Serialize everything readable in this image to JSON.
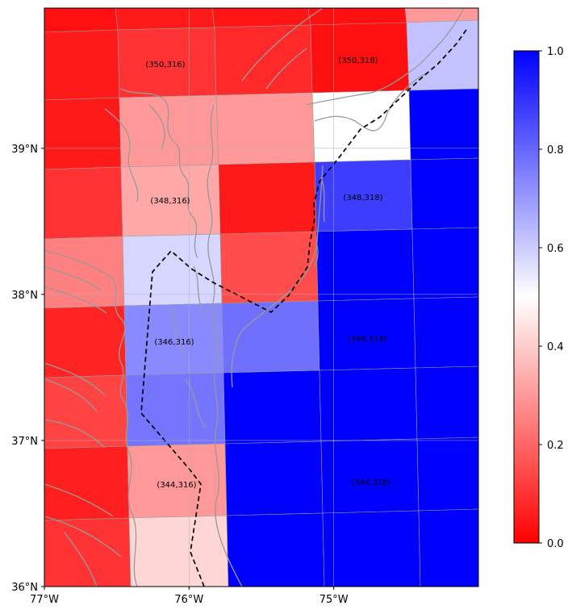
{
  "map": {
    "lat_range": [
      36,
      39.96
    ],
    "lon_range": [
      -77,
      -74
    ],
    "lat_ticks": [
      {
        "value": 39,
        "label": "39°N"
      },
      {
        "value": 38,
        "label": "38°N"
      },
      {
        "value": 37,
        "label": "37°N"
      },
      {
        "value": 36,
        "label": "36°N"
      }
    ],
    "lon_ticks": [
      {
        "value": -77,
        "label": "77°W"
      },
      {
        "value": -76,
        "label": "76°W"
      },
      {
        "value": -75,
        "label": "75°W"
      }
    ],
    "grid_note": "irregular tiles, colored by value",
    "rows": [
      {
        "values": [
          0.03,
          0.05,
          0.04,
          0.03,
          0.3
        ]
      },
      {
        "values": [
          0.05,
          0.1,
          0.08,
          0.03,
          0.62
        ]
      },
      {
        "values": [
          0.05,
          0.3,
          0.3,
          0.5,
          1.0
        ]
      },
      {
        "values": [
          0.1,
          0.33,
          0.05,
          0.88,
          1.0
        ]
      },
      {
        "values": [
          0.25,
          0.58,
          0.15,
          1.0,
          1.0
        ]
      },
      {
        "values": [
          0.07,
          0.73,
          0.78,
          1.0,
          1.0
        ]
      },
      {
        "values": [
          0.13,
          0.77,
          1.0,
          1.0,
          1.0
        ]
      },
      {
        "values": [
          0.06,
          0.3,
          1.0,
          1.0,
          1.0
        ]
      },
      {
        "values": [
          0.1,
          0.42,
          1.0,
          1.0,
          1.0
        ]
      }
    ],
    "cell_labels": [
      {
        "text": "(350,316)"
      },
      {
        "text": "(350,318)"
      },
      {
        "text": "(348,316)"
      },
      {
        "text": "(348,318)"
      },
      {
        "text": "(346,316)"
      },
      {
        "text": "(346,318)"
      },
      {
        "text": "(344,316)"
      },
      {
        "text": "(344,318)"
      }
    ]
  },
  "colorbar": {
    "min": 0,
    "max": 1,
    "colormap": "bwr_r",
    "colors": {
      "low": "#ff0000",
      "mid": "#ffffff",
      "high": "#0000ff"
    },
    "ticks": [
      {
        "value": 0.0,
        "label": "0.0"
      },
      {
        "value": 0.2,
        "label": "0.2"
      },
      {
        "value": 0.4,
        "label": "0.4"
      },
      {
        "value": 0.6,
        "label": "0.6"
      },
      {
        "value": 0.8,
        "label": "0.8"
      },
      {
        "value": 1.0,
        "label": "1.0"
      }
    ]
  }
}
